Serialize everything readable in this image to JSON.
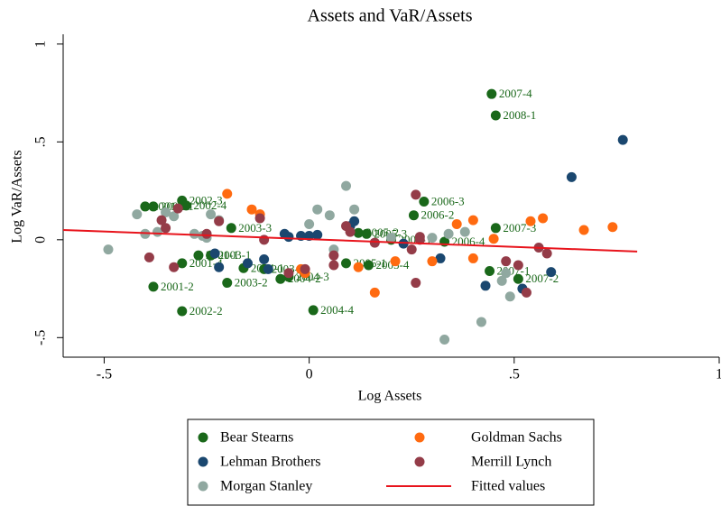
{
  "chart_data": {
    "type": "scatter",
    "title": "Assets and VaR/Assets",
    "x_label": "Log Assets",
    "y_label": "Log VaR/Assets",
    "xlim": [
      -0.6,
      1
    ],
    "ylim": [
      -0.6,
      1.05
    ],
    "xticks": [
      {
        "value": -0.5,
        "label": "-.5"
      },
      0,
      {
        "value": 0.5,
        "label": ".5"
      },
      1
    ],
    "yticks": [
      {
        "value": -0.5,
        "label": "-.5"
      },
      0,
      {
        "value": 0.5,
        "label": ".5"
      },
      1
    ],
    "series": [
      {
        "name": "Bear Stearns",
        "color": "#1a681a",
        "x": [
          0.445,
          0.455,
          0.28,
          0.255,
          0.455,
          0.33,
          0.14,
          0.12,
          0.2,
          0.09,
          0.145,
          -0.19,
          -0.24,
          -0.31,
          -0.2,
          -0.38,
          -0.31,
          0.01,
          -0.05,
          -0.07,
          -0.11,
          -0.16,
          0.44,
          0.51,
          -0.31,
          -0.3,
          -0.38,
          -0.4,
          -0.27
        ],
        "values": [
          0.745,
          0.635,
          0.195,
          0.125,
          0.06,
          -0.01,
          0.03,
          0.035,
          0.0,
          -0.12,
          -0.13,
          0.06,
          -0.08,
          -0.12,
          -0.22,
          -0.24,
          -0.365,
          -0.36,
          -0.19,
          -0.2,
          -0.15,
          -0.145,
          -0.16,
          -0.2,
          0.2,
          0.175,
          0.17,
          0.17,
          -0.08
        ],
        "labels": [
          "2007-4",
          "2008-1",
          "2006-3",
          "2006-2",
          "2007-3",
          "2006-4",
          "2005-3",
          "2005-2",
          "2006-1",
          "2005-1",
          "2005-4",
          "2003-3",
          "2003-1",
          "2001-4",
          "2003-2",
          "2001-2",
          "2002-2",
          "2004-4",
          "2004-3",
          "2004-2",
          "2003-4",
          "2004-1",
          "2007-1",
          "2007-2",
          "2002-3",
          "2002-4",
          "2002-1",
          "2001-3",
          "2001-1"
        ]
      },
      {
        "name": "Lehman Brothers",
        "color": "#1a476f",
        "x": [
          0.765,
          0.64,
          0.59,
          0.52,
          0.43,
          0.32,
          0.23,
          0.11,
          0.1,
          0.02,
          0,
          -0.02,
          -0.06,
          -0.05,
          -0.11,
          -0.1,
          -0.15,
          -0.23,
          -0.22
        ],
        "values": [
          0.51,
          0.32,
          -0.165,
          -0.25,
          -0.235,
          -0.095,
          -0.02,
          0.095,
          0.07,
          0.025,
          0.02,
          0.02,
          0.03,
          0.015,
          -0.1,
          -0.15,
          -0.12,
          -0.07,
          -0.14
        ]
      },
      {
        "name": "Morgan Stanley",
        "color": "#90a8a0",
        "x": [
          -0.49,
          -0.42,
          -0.4,
          -0.37,
          -0.35,
          -0.33,
          -0.28,
          -0.26,
          -0.24,
          -0.22,
          -0.25,
          0.02,
          0.09,
          0.11,
          0.05,
          0.0,
          0.2,
          0.3,
          0.34,
          0.38,
          0.33,
          0.42,
          0.47,
          0.49,
          0.48,
          0.06
        ],
        "values": [
          -0.05,
          0.13,
          0.03,
          0.04,
          0.14,
          0.12,
          0.03,
          0.02,
          0.13,
          0.1,
          0.01,
          0.155,
          0.275,
          0.155,
          0.125,
          0.08,
          0.01,
          0.01,
          0.03,
          0.04,
          -0.51,
          -0.42,
          -0.21,
          -0.29,
          -0.17,
          -0.05
        ]
      },
      {
        "name": "Goldman Sachs",
        "color": "#ff6a10",
        "x": [
          0.74,
          0.67,
          0.57,
          0.54,
          0.45,
          0.4,
          0.4,
          0.36,
          0.3,
          0.21,
          0.16,
          0.12,
          -0.01,
          -0.12,
          -0.14,
          -0.2,
          -0.02
        ],
        "values": [
          0.065,
          0.05,
          0.11,
          0.095,
          0.005,
          0.1,
          -0.095,
          0.08,
          -0.11,
          -0.11,
          -0.27,
          -0.14,
          -0.17,
          0.13,
          0.155,
          0.235,
          -0.15
        ]
      },
      {
        "name": "Merrill Lynch",
        "color": "#943c48",
        "x": [
          0.26,
          0.27,
          0.27,
          0.25,
          0.26,
          0.09,
          0.1,
          0.06,
          0.06,
          -0.01,
          -0.05,
          -0.12,
          -0.11,
          -0.22,
          -0.25,
          -0.35,
          -0.36,
          -0.33,
          -0.39,
          -0.32,
          0.48,
          0.51,
          0.53,
          0.56,
          0.58,
          0.16
        ],
        "values": [
          0.23,
          0.0,
          0.015,
          -0.05,
          -0.22,
          0.07,
          0.04,
          -0.08,
          -0.13,
          -0.15,
          -0.17,
          0.11,
          0.0,
          0.095,
          0.03,
          0.06,
          0.1,
          -0.14,
          -0.09,
          0.16,
          -0.11,
          -0.13,
          -0.27,
          -0.04,
          -0.07,
          -0.015
        ]
      },
      {
        "name": "Fitted values",
        "type": "line",
        "color": "#e8141c",
        "x": [
          -0.6,
          0.8
        ],
        "values": [
          0.05,
          -0.06
        ]
      }
    ]
  }
}
